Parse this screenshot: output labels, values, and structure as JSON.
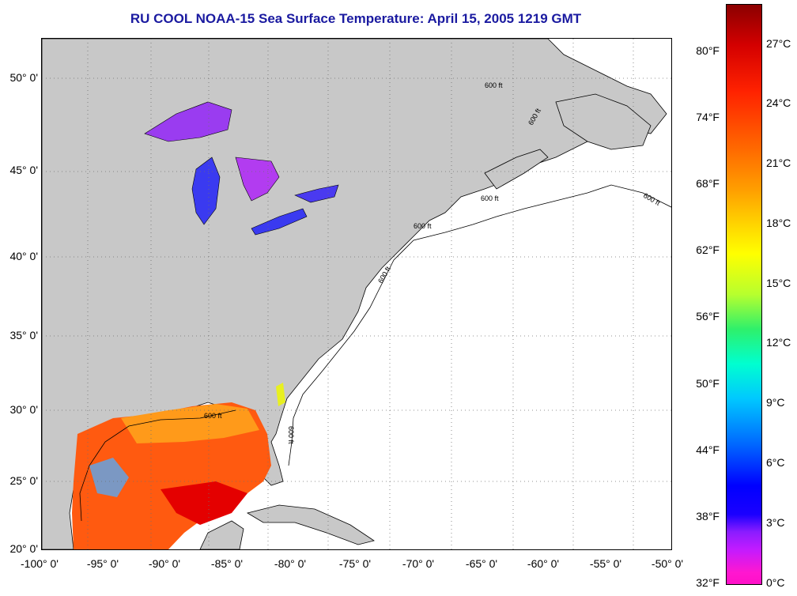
{
  "title": "RU COOL  NOAA-15  Sea Surface Temperature:  April 15, 2005 1219 GMT",
  "map": {
    "lat_labels": [
      "50° 0'",
      "45° 0'",
      "40° 0'",
      "35° 0'",
      "30° 0'",
      "25° 0'",
      "20° 0'"
    ],
    "lon_labels": [
      "-100° 0'",
      "-95° 0'",
      "-90° 0'",
      "-85° 0'",
      "-80° 0'",
      "-75° 0'",
      "-70° 0'",
      "-65° 0'",
      "-60° 0'",
      "-55° 0'",
      "-50° 0'"
    ],
    "contour_label": "600 ft",
    "colors": {
      "land": "#c8c8c8",
      "ocean": "#ffffff",
      "grid": "#707070"
    }
  },
  "colorbar": {
    "fahrenheit_labels": [
      "80°F",
      "74°F",
      "68°F",
      "62°F",
      "56°F",
      "50°F",
      "44°F",
      "38°F",
      "32°F"
    ],
    "celsius_labels": [
      "27°C",
      "24°C",
      "21°C",
      "18°C",
      "15°C",
      "12°C",
      "9°C",
      "6°C",
      "3°C",
      "0°C"
    ],
    "range_celsius": [
      0,
      28.5
    ],
    "colors": [
      "#8b0000",
      "#ff2200",
      "#ff9f00",
      "#ffff00",
      "#2ef06b",
      "#00ffd0",
      "#0066ff",
      "#0000ff",
      "#8b1cff",
      "#ff10c8"
    ]
  }
}
